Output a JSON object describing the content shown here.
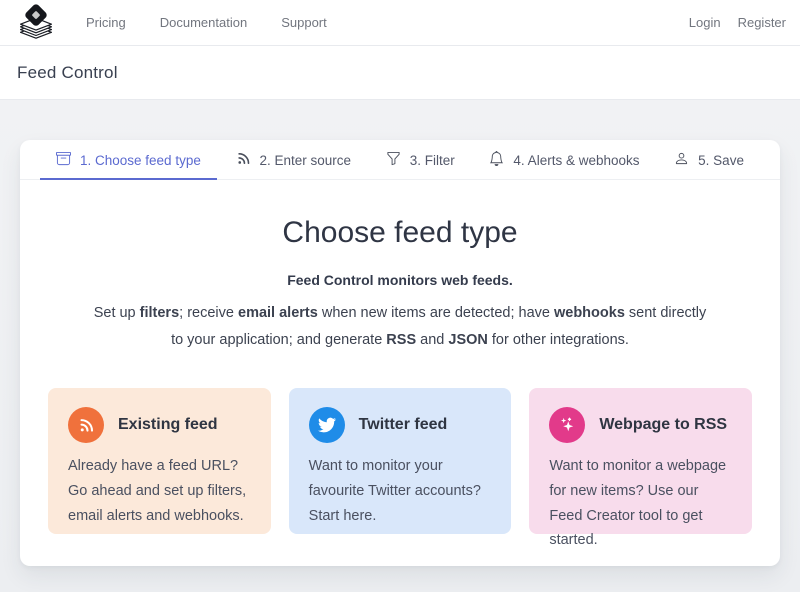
{
  "colors": {
    "accent_indigo": "#5b6ad0",
    "nav_text": "#72767f",
    "heading_text": "#2f3544",
    "card_existing_bg": "#fce9da",
    "card_existing_icon": "#f0713c",
    "card_twitter_bg": "#d9e7fa",
    "card_twitter_icon": "#1f8ce8",
    "card_webpage_bg": "#f8dcec",
    "card_webpage_icon": "#e23a8a"
  },
  "navbar": {
    "links": [
      "Pricing",
      "Documentation",
      "Support"
    ],
    "auth_links": [
      "Login",
      "Register"
    ]
  },
  "page_header": {
    "title": "Feed Control"
  },
  "wizard": {
    "steps": [
      {
        "label": "1. Choose feed type",
        "icon": "archive-icon",
        "active": true
      },
      {
        "label": "2. Enter source",
        "icon": "rss-icon",
        "active": false
      },
      {
        "label": "3. Filter",
        "icon": "funnel-icon",
        "active": false
      },
      {
        "label": "4. Alerts & webhooks",
        "icon": "bell-icon",
        "active": false
      },
      {
        "label": "5. Save",
        "icon": "person-icon",
        "active": false
      }
    ]
  },
  "content": {
    "heading": "Choose feed type",
    "subheading": "Feed Control monitors web feeds.",
    "description_segments": [
      {
        "text": "Set up ",
        "bold": false
      },
      {
        "text": "filters",
        "bold": true
      },
      {
        "text": "; receive ",
        "bold": false
      },
      {
        "text": "email alerts",
        "bold": true
      },
      {
        "text": " when new items are detected; have ",
        "bold": false
      },
      {
        "text": "webhooks",
        "bold": true
      },
      {
        "text": " sent directly to your application; and generate ",
        "bold": false
      },
      {
        "text": "RSS",
        "bold": true
      },
      {
        "text": " and ",
        "bold": false
      },
      {
        "text": "JSON",
        "bold": true
      },
      {
        "text": " for other integrations.",
        "bold": false
      }
    ],
    "cards": [
      {
        "title": "Existing feed",
        "body": "Already have a feed URL? Go ahead and set up filters, email alerts and webhooks.",
        "icon": "rss-icon",
        "bg": "#fce9da",
        "icon_bg": "#f0713c"
      },
      {
        "title": "Twitter feed",
        "body": "Want to monitor your favourite Twitter accounts? Start here.",
        "icon": "twitter-icon",
        "bg": "#d9e7fa",
        "icon_bg": "#1f8ce8"
      },
      {
        "title": "Webpage to RSS",
        "body": "Want to monitor a webpage for new items? Use our Feed Creator tool to get started.",
        "icon": "sparkles-icon",
        "bg": "#f8dcec",
        "icon_bg": "#e23a8a"
      }
    ]
  }
}
